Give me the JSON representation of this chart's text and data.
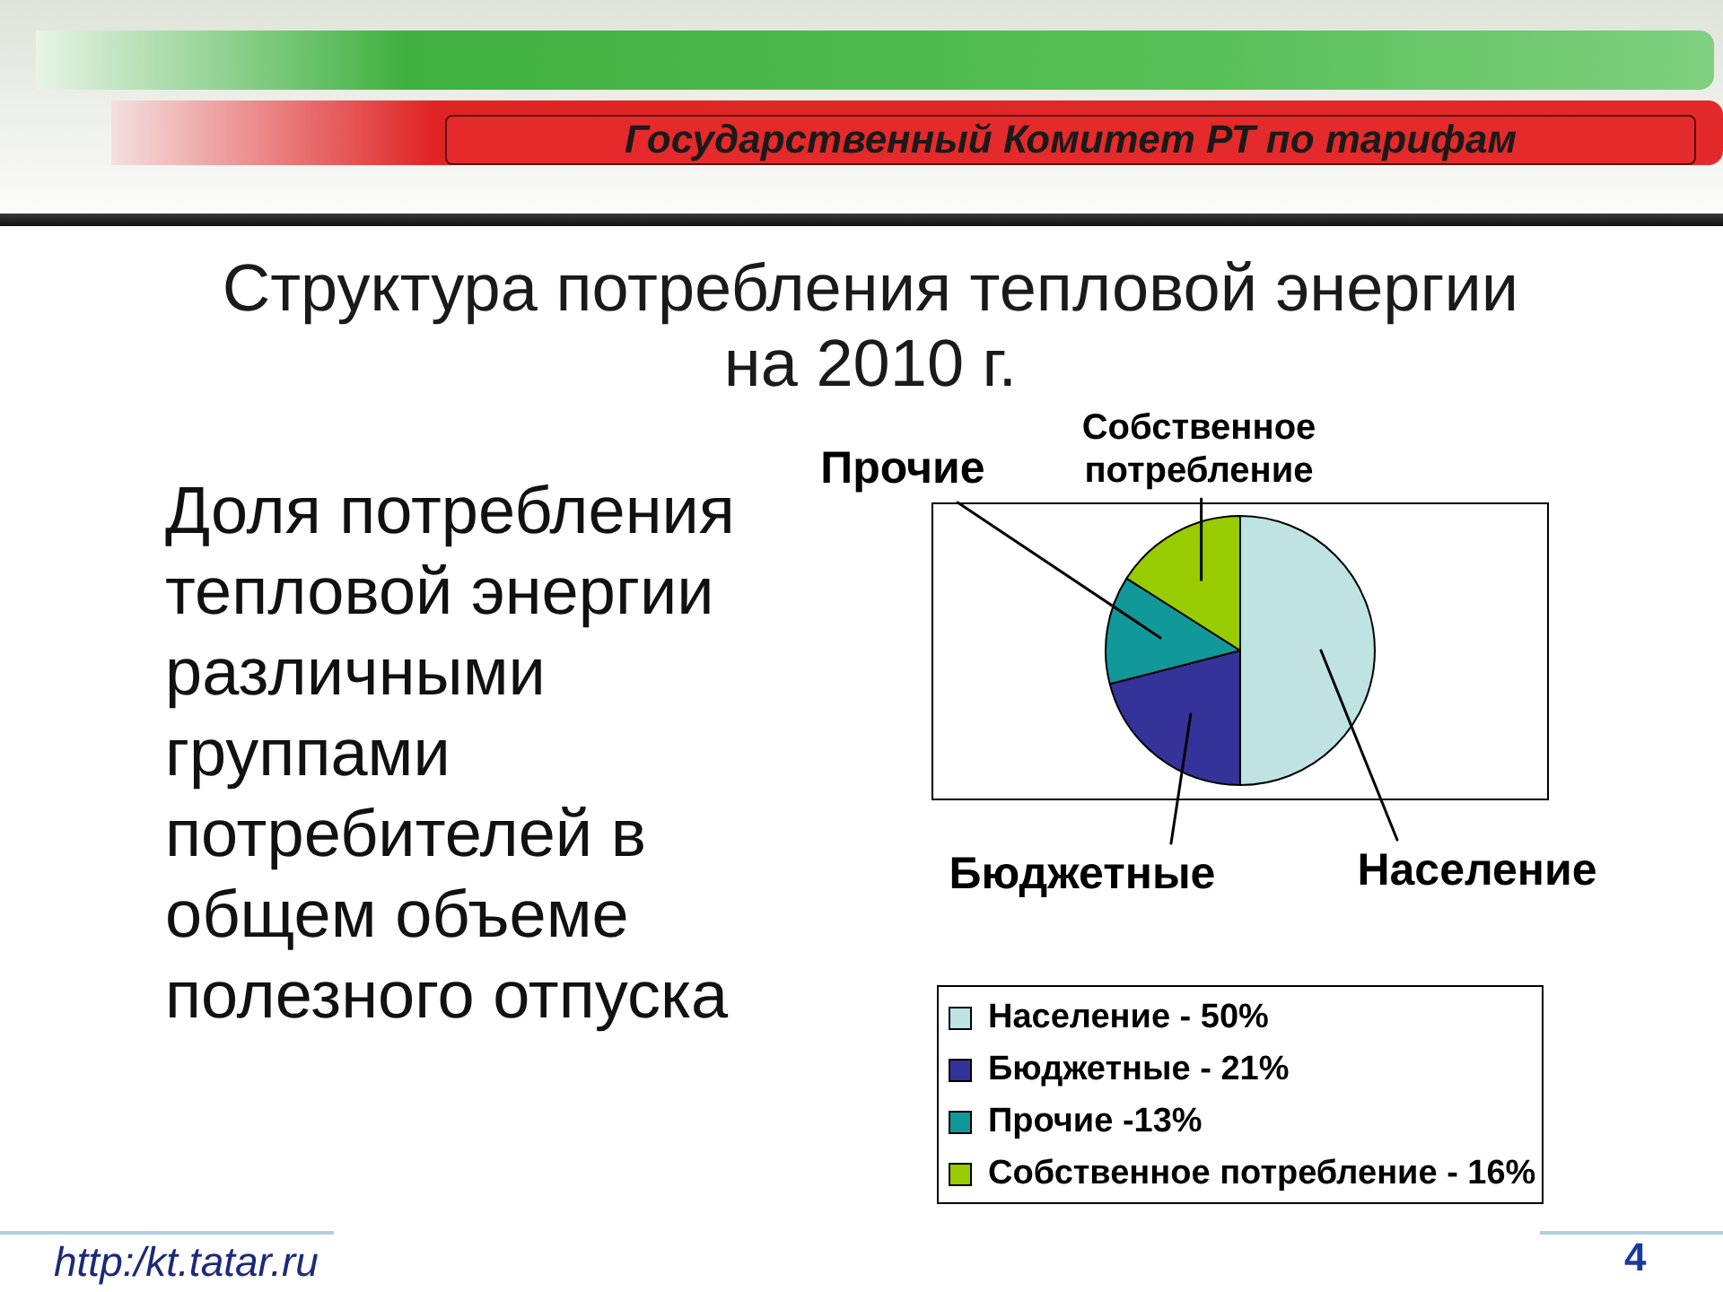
{
  "chart_data": {
    "type": "pie",
    "title": "Структура потребления тепловой энергии на 2010 г.",
    "subtitle": "Доля потребления тепловой энергии различными группами потребителей в общем объеме полезного отпуска",
    "categories": [
      "Население - 50%",
      "Бюджетные - 21%",
      "Прочие -13%",
      "Собственное потребление - 16%"
    ],
    "values": [
      50,
      21,
      13,
      16
    ],
    "colors": [
      "#bfe3e3",
      "#333399",
      "#119999",
      "#99cc00"
    ],
    "legend": "bottom",
    "annotations": [
      "Население",
      "Бюджетные",
      "Прочие",
      "Собственное потребление",
      "Государственный Комитет РТ по тарифам",
      "http:/kt.tatar.ru",
      "4"
    ]
  }
}
